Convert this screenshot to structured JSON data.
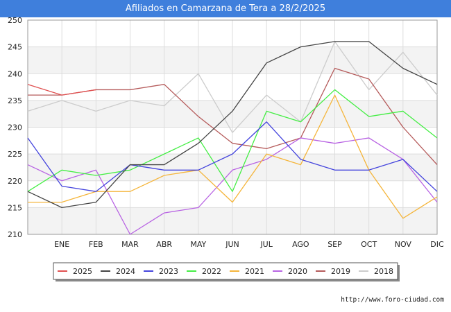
{
  "chart_data": {
    "type": "line",
    "title": "Afiliados en Camarzana de Tera a 28/2/2025",
    "x_ticks": [
      "",
      "ENE",
      "FEB",
      "MAR",
      "ABR",
      "MAY",
      "JUN",
      "JUL",
      "AGO",
      "SEP",
      "OCT",
      "NOV",
      "DIC"
    ],
    "ylim": [
      210,
      250
    ],
    "y_ticks": [
      210,
      215,
      220,
      225,
      230,
      235,
      240,
      245,
      250
    ],
    "grid": true,
    "legend_position": "bottom",
    "series": [
      {
        "name": "2025",
        "color": "#e05050",
        "values": [
          238,
          236,
          237
        ]
      },
      {
        "name": "2024",
        "color": "#444444",
        "values": [
          218,
          215,
          216,
          223,
          223,
          227,
          233,
          242,
          245,
          246,
          246,
          241,
          238
        ]
      },
      {
        "name": "2023",
        "color": "#4444dd",
        "values": [
          228,
          219,
          218,
          223,
          222,
          222,
          225,
          231,
          224,
          222,
          222,
          224,
          218
        ]
      },
      {
        "name": "2022",
        "color": "#44ee44",
        "values": [
          218,
          222,
          221,
          222,
          225,
          228,
          218,
          233,
          231,
          237,
          232,
          233,
          228
        ]
      },
      {
        "name": "2021",
        "color": "#f5b53a",
        "values": [
          216,
          216,
          218,
          218,
          221,
          222,
          216,
          225,
          223,
          236,
          222,
          213,
          217
        ]
      },
      {
        "name": "2020",
        "color": "#b863e3",
        "values": [
          223,
          220,
          222,
          210,
          214,
          215,
          222,
          224,
          228,
          227,
          228,
          224,
          216
        ]
      },
      {
        "name": "2019",
        "color": "#b55a5a",
        "values": [
          236,
          236,
          237,
          237,
          238,
          232,
          227,
          226,
          228,
          241,
          239,
          230,
          223
        ]
      },
      {
        "name": "2018",
        "color": "#cccccc",
        "values": [
          233,
          235,
          233,
          235,
          234,
          240,
          229,
          236,
          231,
          246,
          237,
          244,
          236
        ]
      }
    ]
  },
  "footer": {
    "source": "http://www.foro-ciudad.com"
  }
}
